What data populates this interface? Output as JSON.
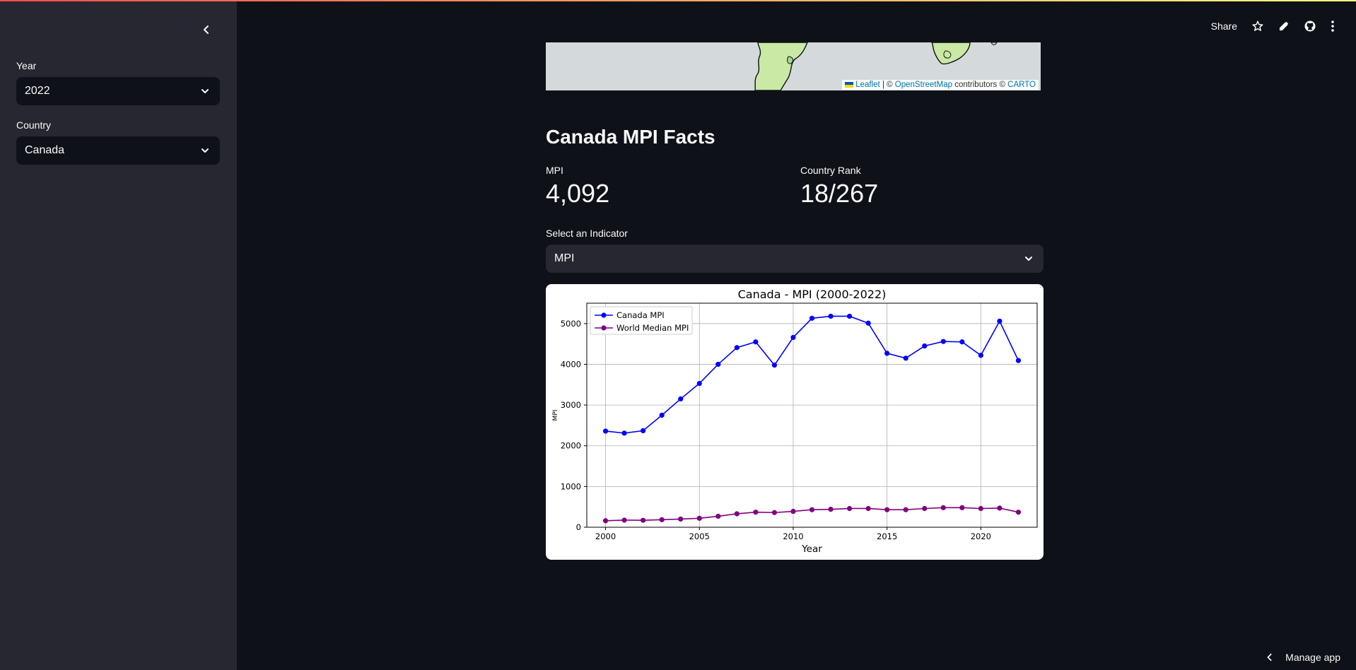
{
  "sidebar": {
    "year_label": "Year",
    "year_value": "2022",
    "country_label": "Country",
    "country_value": "Canada"
  },
  "header": {
    "share_label": "Share"
  },
  "map": {
    "leaflet": "Leaflet",
    "sep": "| ©",
    "osm": "OpenStreetMap",
    "contrib": "contributors ©",
    "carto": "CARTO"
  },
  "facts": {
    "title": "Canada MPI Facts",
    "mpi_label": "MPI",
    "mpi_value": "4,092",
    "rank_label": "Country Rank",
    "rank_value": "18/267"
  },
  "indicator": {
    "label": "Select an Indicator",
    "value": "MPI"
  },
  "footer": {
    "manage_label": "Manage app"
  },
  "chart_data": {
    "type": "line",
    "title": "Canada - MPI (2000-2022)",
    "xlabel": "Year",
    "ylabel": "MPI",
    "x": [
      2000,
      2001,
      2002,
      2003,
      2004,
      2005,
      2006,
      2007,
      2008,
      2009,
      2010,
      2011,
      2012,
      2013,
      2014,
      2015,
      2016,
      2017,
      2018,
      2019,
      2020,
      2021,
      2022
    ],
    "xticks": [
      2000,
      2005,
      2010,
      2015,
      2020
    ],
    "yticks": [
      0,
      1000,
      2000,
      3000,
      4000,
      5000
    ],
    "xlim": [
      1999,
      2023
    ],
    "ylim": [
      0,
      5500
    ],
    "grid": true,
    "legend_position": "upper-left",
    "series": [
      {
        "name": "Canada MPI",
        "color": "#0000ff",
        "values": [
          2360,
          2310,
          2370,
          2750,
          3150,
          3530,
          4000,
          4410,
          4550,
          3980,
          4660,
          5130,
          5180,
          5180,
          5010,
          4270,
          4150,
          4450,
          4560,
          4550,
          4220,
          5060,
          4092
        ]
      },
      {
        "name": "World Median MPI",
        "color": "#800080",
        "values": [
          160,
          175,
          170,
          185,
          200,
          220,
          270,
          330,
          370,
          360,
          390,
          430,
          440,
          460,
          460,
          430,
          430,
          460,
          480,
          480,
          460,
          470,
          370
        ]
      }
    ]
  }
}
